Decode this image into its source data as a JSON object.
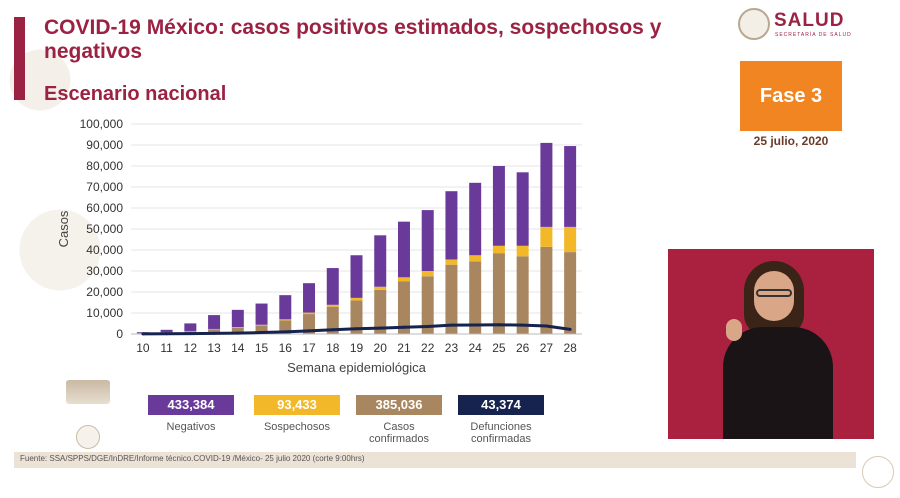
{
  "header": {
    "title": "COVID-19 México: casos positivos estimados, sospechosos y negativos",
    "subtitle": "Escenario nacional"
  },
  "logo": {
    "text": "SALUD",
    "sub": "SECRETARÍA DE SALUD"
  },
  "phase": {
    "label": "Fase 3",
    "date": "25 julio, 2020"
  },
  "colors": {
    "accent": "#9b2242",
    "negativos": "#6a3a9a",
    "sospechosos": "#f2b82a",
    "confirmados": "#a8865f",
    "defunciones": "#16234f",
    "phase": "#f08521"
  },
  "legend": [
    {
      "value": "433,384",
      "label": "Negativos",
      "color": "#6a3a9a"
    },
    {
      "value": "93,433",
      "label": "Sospechosos",
      "color": "#f2b82a"
    },
    {
      "value": "385,036",
      "label": "Casos confirmados",
      "color": "#a8865f"
    },
    {
      "value": "43,374",
      "label": "Defunciones confirmadas",
      "color": "#16234f"
    }
  ],
  "source": "Fuente: SSA/SPPS/DGE/InDRE/Informe técnico.COVID-19 /México- 25 julio 2020 (corte 9:00hrs)",
  "chart_data": {
    "type": "bar",
    "stacked": true,
    "xlabel": "Semana epidemiológica",
    "ylabel": "Casos",
    "ylim": [
      0,
      100000
    ],
    "yticks": [
      0,
      10000,
      20000,
      30000,
      40000,
      50000,
      60000,
      70000,
      80000,
      90000,
      100000
    ],
    "ytick_labels": [
      "0",
      "10,000",
      "20,000",
      "30,000",
      "40,000",
      "50,000",
      "60,000",
      "70,000",
      "80,000",
      "90,000",
      "100,000"
    ],
    "categories": [
      "10",
      "11",
      "12",
      "13",
      "14",
      "15",
      "16",
      "17",
      "18",
      "19",
      "20",
      "21",
      "22",
      "23",
      "24",
      "25",
      "26",
      "27",
      "28"
    ],
    "series": [
      {
        "name": "Casos confirmados",
        "color": "#a8865f",
        "values": [
          300,
          700,
          1300,
          2200,
          3000,
          4000,
          6500,
          9500,
          13000,
          16000,
          21000,
          25000,
          27500,
          33000,
          34500,
          38500,
          37000,
          41500,
          39000
        ]
      },
      {
        "name": "Sospechosos",
        "color": "#f2b82a",
        "values": [
          50,
          100,
          150,
          200,
          300,
          400,
          500,
          700,
          900,
          1200,
          1500,
          2000,
          2500,
          2500,
          3000,
          3500,
          5000,
          9500,
          12000
        ]
      },
      {
        "name": "Negativos",
        "color": "#6a3a9a",
        "values": [
          500,
          1200,
          3600,
          6600,
          8200,
          10100,
          11500,
          14000,
          17500,
          20300,
          24500,
          26500,
          29000,
          32500,
          34500,
          38000,
          35000,
          40000,
          38500
        ]
      }
    ],
    "line": {
      "name": "Defunciones confirmadas",
      "color": "#16234f",
      "values": [
        50,
        100,
        150,
        300,
        400,
        700,
        1000,
        1500,
        2000,
        2500,
        2800,
        3200,
        3600,
        4200,
        4300,
        4400,
        4200,
        3800,
        2200
      ]
    }
  }
}
